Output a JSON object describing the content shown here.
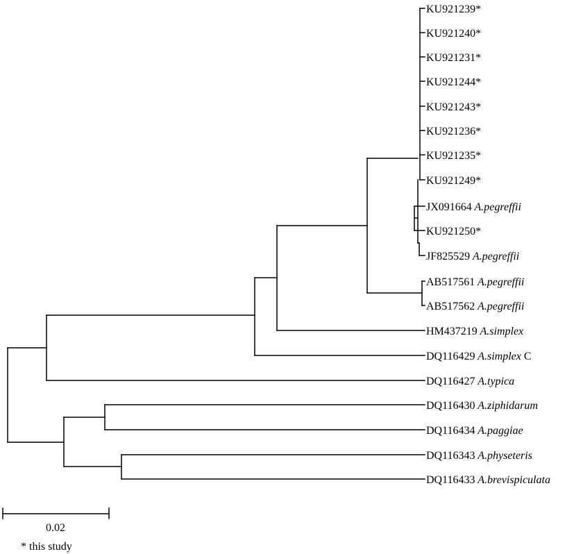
{
  "tree": {
    "leaves": [
      {
        "accession": "KU921239*",
        "species": "",
        "suffix": ""
      },
      {
        "accession": "KU921240*",
        "species": "",
        "suffix": ""
      },
      {
        "accession": "KU921231*",
        "species": "",
        "suffix": ""
      },
      {
        "accession": "KU921244*",
        "species": "",
        "suffix": ""
      },
      {
        "accession": "KU921243*",
        "species": "",
        "suffix": ""
      },
      {
        "accession": "KU921236*",
        "species": "",
        "suffix": ""
      },
      {
        "accession": "KU921235*",
        "species": "",
        "suffix": ""
      },
      {
        "accession": "KU921249*",
        "species": "",
        "suffix": ""
      },
      {
        "accession": "JX091664",
        "species": "A.pegreffii",
        "suffix": ""
      },
      {
        "accession": "KU921250*",
        "species": "",
        "suffix": ""
      },
      {
        "accession": "JF825529",
        "species": "A.pegreffii",
        "suffix": ""
      },
      {
        "accession": "AB517561",
        "species": "A.pegreffii",
        "suffix": ""
      },
      {
        "accession": "AB517562",
        "species": "A.pegreffii",
        "suffix": ""
      },
      {
        "accession": "HM437219",
        "species": "A.simplex",
        "suffix": ""
      },
      {
        "accession": "DQ116429",
        "species": "A.simplex",
        "suffix": "C"
      },
      {
        "accession": "DQ116427",
        "species": "A.typica",
        "suffix": ""
      },
      {
        "accession": "DQ116430",
        "species": "A.ziphidarum",
        "suffix": ""
      },
      {
        "accession": "DQ116434",
        "species": "A.paggiae",
        "suffix": ""
      },
      {
        "accession": "DQ116343",
        "species": "A.physeteris",
        "suffix": ""
      },
      {
        "accession": "DQ116433",
        "species": "A.brevispiculata",
        "suffix": ""
      }
    ],
    "scale_bar_label": "0.02",
    "footnote": "* this study"
  }
}
